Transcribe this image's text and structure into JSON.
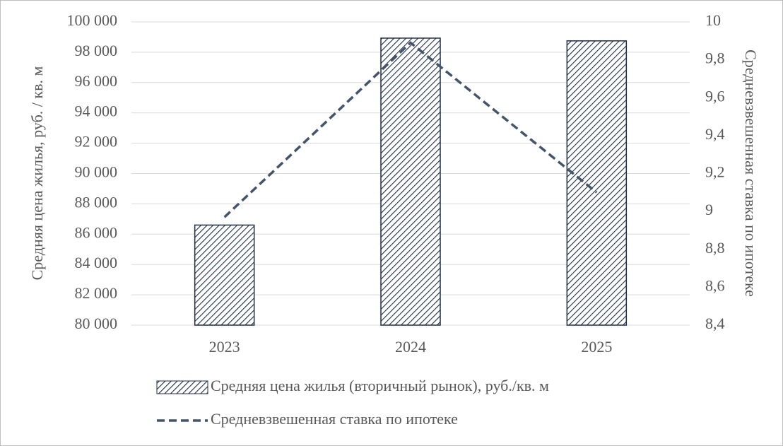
{
  "chart_data": {
    "type": "bar-line",
    "categories": [
      "2023",
      "2024",
      "2025"
    ],
    "y_label": "Средняя цена жилья, руб. / кв. м",
    "y2_label": "Средневзвешенная ставка по ипотеке",
    "series": [
      {
        "name": "Средняя цена жилья (вторичный рынок), руб./кв. м",
        "type": "bar",
        "color": "#1f2d45",
        "pattern": "hatch",
        "values": [
          86600,
          98930,
          98750
        ]
      },
      {
        "name": "Средневзвешенная ставка по ипотеке",
        "type": "line",
        "color": "#44546a",
        "linestyle": "dashed",
        "axis": "y2",
        "values": [
          8.97,
          9.89,
          9.1
        ]
      }
    ],
    "ylim": [
      80000,
      100000
    ],
    "yticks": [
      {
        "value": 80000,
        "label": "80 000"
      },
      {
        "value": 82000,
        "label": "82 000"
      },
      {
        "value": 84000,
        "label": "84 000"
      },
      {
        "value": 86000,
        "label": "86 000"
      },
      {
        "value": 88000,
        "label": "88 000"
      },
      {
        "value": 90000,
        "label": "90 000"
      },
      {
        "value": 92000,
        "label": "92 000"
      },
      {
        "value": 94000,
        "label": "94 000"
      },
      {
        "value": 96000,
        "label": "96 000"
      },
      {
        "value": 98000,
        "label": "98 000"
      },
      {
        "value": 100000,
        "label": "100 000"
      }
    ],
    "y2lim": [
      8.4,
      10
    ],
    "y2ticks": [
      {
        "value": 8.4,
        "label": "8,4"
      },
      {
        "value": 8.6,
        "label": "8,6"
      },
      {
        "value": 8.8,
        "label": "8,8"
      },
      9,
      {
        "value": 9.2,
        "label": "9,2"
      },
      {
        "value": 9.4,
        "label": "9,4"
      },
      {
        "value": 9.6,
        "label": "9,6"
      },
      {
        "value": 9.8,
        "label": "9,8"
      },
      10
    ],
    "grid": true,
    "legend": "bottom"
  }
}
